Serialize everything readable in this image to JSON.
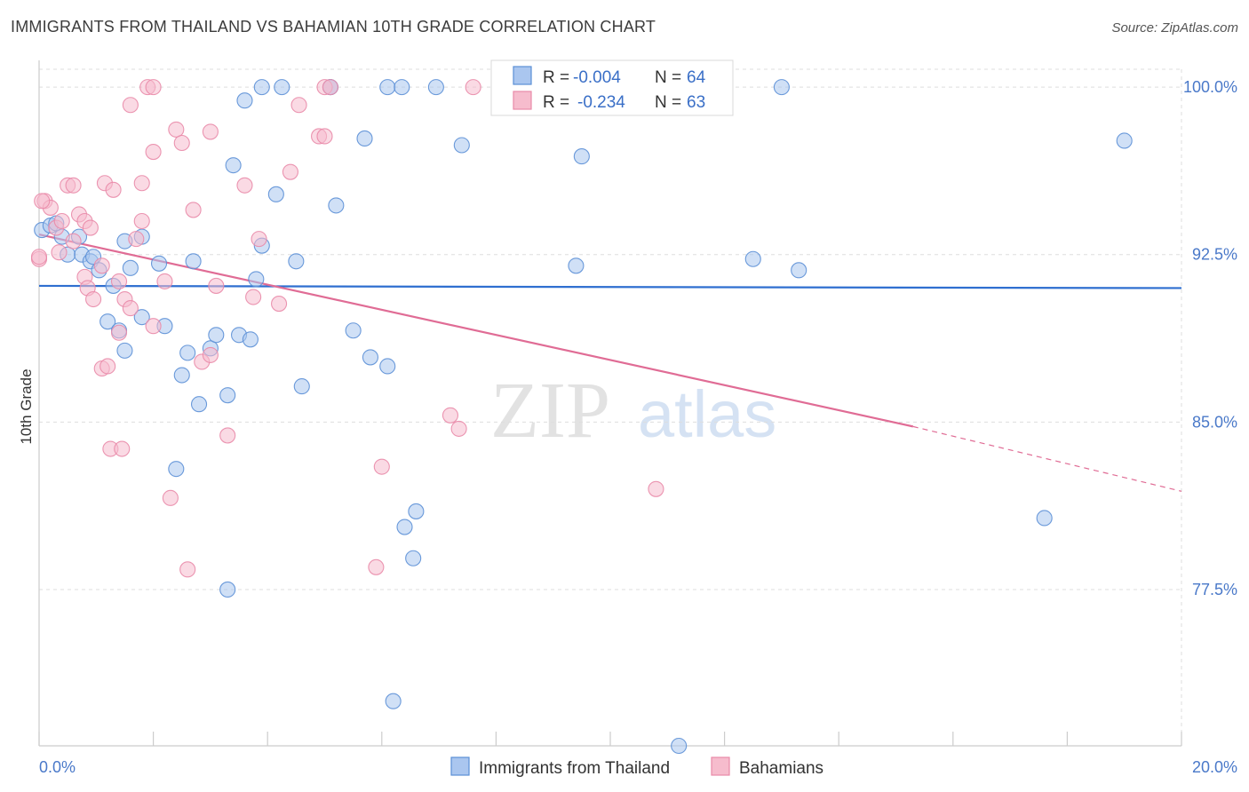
{
  "header": {
    "title": "IMMIGRANTS FROM THAILAND VS BAHAMIAN 10TH GRADE CORRELATION CHART",
    "source": "Source: ZipAtlas.com"
  },
  "watermark": {
    "part1": "ZIP",
    "part2": "atlas"
  },
  "colors": {
    "blue_fill": "#aac6ef",
    "blue_stroke": "#5b8fd6",
    "blue_line": "#2f6fd0",
    "pink_fill": "#f6bccd",
    "pink_stroke": "#e98aa8",
    "pink_line": "#e06c95",
    "grid": "#dddddd",
    "tick_text": "#4a79c9"
  },
  "legend": {
    "rows": [
      {
        "r_label": "R =",
        "r_value": "-0.004",
        "n_label": "N =",
        "n_value": "64",
        "color": "blue"
      },
      {
        "r_label": "R =",
        "r_value": "-0.234",
        "n_label": "N =",
        "n_value": "63",
        "color": "pink"
      }
    ]
  },
  "bottom_legend": [
    {
      "label": "Immigrants from Thailand",
      "color": "blue"
    },
    {
      "label": "Bahamians",
      "color": "pink"
    }
  ],
  "chart_data": {
    "type": "scatter",
    "title": "IMMIGRANTS FROM THAILAND VS BAHAMIAN 10TH GRADE CORRELATION CHART",
    "xlabel": "",
    "ylabel": "10th Grade",
    "xlim": [
      0,
      20
    ],
    "ylim": [
      70.5,
      100.8
    ],
    "x_tick_labels": [
      "0.0%",
      "20.0%"
    ],
    "y_ticks": [
      77.5,
      85.0,
      92.5,
      100.0
    ],
    "y_tick_labels": [
      "77.5%",
      "85.0%",
      "92.5%",
      "100.0%"
    ],
    "grid": true,
    "legend_position": "top-center",
    "series": [
      {
        "name": "Immigrants from Thailand",
        "color": "blue",
        "trend": {
          "x": [
            0,
            20
          ],
          "y": [
            91.1,
            91.0
          ],
          "style": "solid"
        },
        "points": [
          {
            "x": 0.05,
            "y": 93.6
          },
          {
            "x": 0.2,
            "y": 93.8
          },
          {
            "x": 0.3,
            "y": 93.9
          },
          {
            "x": 0.4,
            "y": 93.3
          },
          {
            "x": 0.5,
            "y": 92.5
          },
          {
            "x": 0.7,
            "y": 93.3
          },
          {
            "x": 0.75,
            "y": 92.5
          },
          {
            "x": 0.9,
            "y": 92.2
          },
          {
            "x": 0.95,
            "y": 92.4
          },
          {
            "x": 1.05,
            "y": 91.8
          },
          {
            "x": 1.3,
            "y": 91.1
          },
          {
            "x": 1.6,
            "y": 91.9
          },
          {
            "x": 1.5,
            "y": 93.1
          },
          {
            "x": 1.8,
            "y": 93.3
          },
          {
            "x": 2.1,
            "y": 92.1
          },
          {
            "x": 2.7,
            "y": 92.2
          },
          {
            "x": 1.2,
            "y": 89.5
          },
          {
            "x": 1.4,
            "y": 89.1
          },
          {
            "x": 1.5,
            "y": 88.2
          },
          {
            "x": 1.8,
            "y": 89.7
          },
          {
            "x": 2.2,
            "y": 89.3
          },
          {
            "x": 2.5,
            "y": 87.1
          },
          {
            "x": 2.6,
            "y": 88.1
          },
          {
            "x": 2.8,
            "y": 85.8
          },
          {
            "x": 3.0,
            "y": 88.3
          },
          {
            "x": 3.1,
            "y": 88.9
          },
          {
            "x": 3.3,
            "y": 86.2
          },
          {
            "x": 3.5,
            "y": 88.9
          },
          {
            "x": 3.7,
            "y": 88.7
          },
          {
            "x": 3.8,
            "y": 91.4
          },
          {
            "x": 3.9,
            "y": 92.9
          },
          {
            "x": 4.5,
            "y": 92.2
          },
          {
            "x": 2.4,
            "y": 82.9
          },
          {
            "x": 3.3,
            "y": 77.5
          },
          {
            "x": 3.4,
            "y": 96.5
          },
          {
            "x": 4.15,
            "y": 95.2
          },
          {
            "x": 4.6,
            "y": 86.6
          },
          {
            "x": 5.2,
            "y": 94.7
          },
          {
            "x": 5.5,
            "y": 89.1
          },
          {
            "x": 5.7,
            "y": 97.7
          },
          {
            "x": 5.8,
            "y": 87.9
          },
          {
            "x": 6.1,
            "y": 87.5
          },
          {
            "x": 6.4,
            "y": 80.3
          },
          {
            "x": 6.6,
            "y": 81.0
          },
          {
            "x": 6.55,
            "y": 78.9
          },
          {
            "x": 6.2,
            "y": 72.5
          },
          {
            "x": 7.4,
            "y": 97.4
          },
          {
            "x": 9.5,
            "y": 96.9
          },
          {
            "x": 9.4,
            "y": 92.0
          },
          {
            "x": 3.6,
            "y": 99.4
          },
          {
            "x": 3.9,
            "y": 100.0
          },
          {
            "x": 4.25,
            "y": 100.0
          },
          {
            "x": 5.1,
            "y": 100.0
          },
          {
            "x": 5.1,
            "y": 100.0
          },
          {
            "x": 6.1,
            "y": 100.0
          },
          {
            "x": 6.35,
            "y": 100.0
          },
          {
            "x": 6.95,
            "y": 100.0
          },
          {
            "x": 11.8,
            "y": 100.0
          },
          {
            "x": 12.5,
            "y": 92.3
          },
          {
            "x": 13.3,
            "y": 91.8
          },
          {
            "x": 13.0,
            "y": 100.0
          },
          {
            "x": 19.0,
            "y": 97.6
          },
          {
            "x": 17.6,
            "y": 80.7
          },
          {
            "x": 11.2,
            "y": 70.5
          }
        ]
      },
      {
        "name": "Bahamians",
        "color": "pink",
        "trend": {
          "x": [
            0,
            15.3,
            20
          ],
          "y": [
            93.4,
            84.8,
            81.9
          ],
          "style": "solid-then-dashed"
        },
        "points": [
          {
            "x": 0.0,
            "y": 92.3
          },
          {
            "x": 0.1,
            "y": 94.9
          },
          {
            "x": 0.2,
            "y": 94.6
          },
          {
            "x": 0.3,
            "y": 93.7
          },
          {
            "x": 0.4,
            "y": 94.0
          },
          {
            "x": 0.5,
            "y": 95.6
          },
          {
            "x": 0.6,
            "y": 95.6
          },
          {
            "x": 0.7,
            "y": 94.3
          },
          {
            "x": 0.8,
            "y": 94.0
          },
          {
            "x": 0.9,
            "y": 93.7
          },
          {
            "x": 0.6,
            "y": 93.1
          },
          {
            "x": 0.35,
            "y": 92.6
          },
          {
            "x": 0.8,
            "y": 91.5
          },
          {
            "x": 0.85,
            "y": 91.0
          },
          {
            "x": 0.95,
            "y": 90.5
          },
          {
            "x": 1.1,
            "y": 92.0
          },
          {
            "x": 1.15,
            "y": 95.7
          },
          {
            "x": 1.3,
            "y": 95.4
          },
          {
            "x": 1.4,
            "y": 91.3
          },
          {
            "x": 1.5,
            "y": 90.5
          },
          {
            "x": 1.6,
            "y": 90.1
          },
          {
            "x": 1.4,
            "y": 89.0
          },
          {
            "x": 1.8,
            "y": 94.0
          },
          {
            "x": 1.7,
            "y": 93.2
          },
          {
            "x": 1.8,
            "y": 95.7
          },
          {
            "x": 2.0,
            "y": 97.1
          },
          {
            "x": 2.2,
            "y": 91.3
          },
          {
            "x": 2.0,
            "y": 89.3
          },
          {
            "x": 1.1,
            "y": 87.4
          },
          {
            "x": 1.2,
            "y": 87.5
          },
          {
            "x": 1.25,
            "y": 83.8
          },
          {
            "x": 1.45,
            "y": 83.8
          },
          {
            "x": 2.3,
            "y": 81.6
          },
          {
            "x": 2.6,
            "y": 78.4
          },
          {
            "x": 2.4,
            "y": 98.1
          },
          {
            "x": 2.5,
            "y": 97.5
          },
          {
            "x": 2.7,
            "y": 94.5
          },
          {
            "x": 2.85,
            "y": 87.7
          },
          {
            "x": 3.0,
            "y": 88.0
          },
          {
            "x": 3.0,
            "y": 98.0
          },
          {
            "x": 3.1,
            "y": 91.1
          },
          {
            "x": 3.3,
            "y": 84.4
          },
          {
            "x": 3.6,
            "y": 95.6
          },
          {
            "x": 3.75,
            "y": 90.6
          },
          {
            "x": 3.85,
            "y": 93.2
          },
          {
            "x": 4.2,
            "y": 90.3
          },
          {
            "x": 4.4,
            "y": 96.2
          },
          {
            "x": 1.6,
            "y": 99.2
          },
          {
            "x": 1.9,
            "y": 100.0
          },
          {
            "x": 2.0,
            "y": 100.0
          },
          {
            "x": 4.55,
            "y": 99.2
          },
          {
            "x": 4.9,
            "y": 97.8
          },
          {
            "x": 5.0,
            "y": 97.8
          },
          {
            "x": 5.0,
            "y": 100.0
          },
          {
            "x": 5.1,
            "y": 100.0
          },
          {
            "x": 5.9,
            "y": 78.5
          },
          {
            "x": 6.0,
            "y": 83.0
          },
          {
            "x": 7.2,
            "y": 85.3
          },
          {
            "x": 7.35,
            "y": 84.7
          },
          {
            "x": 7.6,
            "y": 100.0
          },
          {
            "x": 10.8,
            "y": 82.0
          },
          {
            "x": 0.05,
            "y": 94.9
          },
          {
            "x": 0.0,
            "y": 92.4
          }
        ]
      }
    ]
  }
}
